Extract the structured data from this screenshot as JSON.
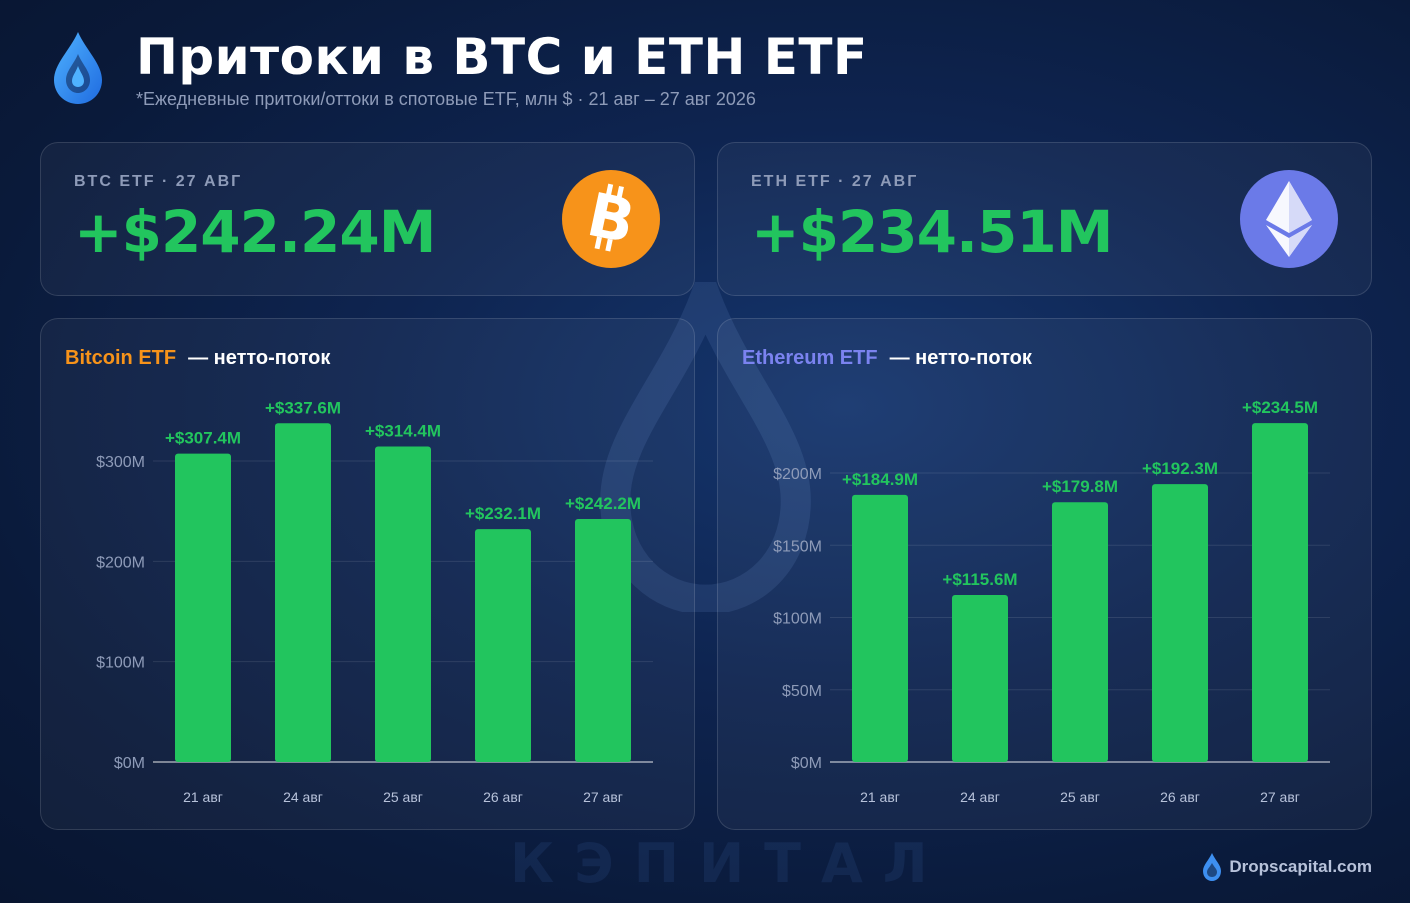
{
  "header": {
    "logo_icon": "water-drop-icon",
    "title": "Притоки в BTC и ETH ETF",
    "subtitle": "*Ежедневные притоки/оттоки в спотовые ETF, млн $ · 21 авг – 27 авг 2026"
  },
  "kpis": [
    {
      "label": "BTC ETF · 27 АВГ",
      "value": "+$242.24M",
      "icon": "bitcoin-icon",
      "icon_color": "#f7931a"
    },
    {
      "label": "ETH ETF · 27 АВГ",
      "value": "+$234.51M",
      "icon": "ethereum-icon",
      "icon_color": "#6b7ae8"
    }
  ],
  "chart_titles": [
    {
      "accent": "Bitcoin ETF",
      "rest": "— нетто-поток"
    },
    {
      "accent": "Ethereum ETF",
      "rest": "— нетто-поток"
    }
  ],
  "colors": {
    "bar": "#22c55e",
    "value_text": "#22c55e",
    "btc": "#f7931a",
    "eth": "#7b83f0"
  },
  "chart_data": [
    {
      "type": "bar",
      "title": "Bitcoin ETF — нетто-поток",
      "categories": [
        "21 авг",
        "24 авг",
        "25 авг",
        "26 авг",
        "27 авг"
      ],
      "values": [
        307.4,
        337.6,
        314.4,
        232.1,
        242.2
      ],
      "data_labels": [
        "+$307.4M",
        "+$337.6M",
        "+$314.4M",
        "+$232.1M",
        "+$242.2M"
      ],
      "yticks": [
        0,
        100,
        200,
        300
      ],
      "ytick_labels": [
        "$0M",
        "$100M",
        "$200M",
        "$300M"
      ],
      "ylim": [
        0,
        300
      ],
      "xlabel": "",
      "ylabel": "",
      "grid": true,
      "legend": "none"
    },
    {
      "type": "bar",
      "title": "Ethereum ETF — нетто-поток",
      "categories": [
        "21 авг",
        "24 авг",
        "25 авг",
        "26 авг",
        "27 авг"
      ],
      "values": [
        184.9,
        115.6,
        179.8,
        192.3,
        234.5
      ],
      "data_labels": [
        "+$184.9M",
        "+$115.6M",
        "+$179.8M",
        "+$192.3M",
        "+$234.5M"
      ],
      "yticks": [
        0,
        50,
        100,
        150,
        200
      ],
      "ytick_labels": [
        "$0M",
        "$50M",
        "$100M",
        "$150M",
        "$200M"
      ],
      "ylim": [
        0,
        200
      ],
      "xlabel": "",
      "ylabel": "",
      "grid": true,
      "legend": "none"
    }
  ],
  "watermark": {
    "text": "КЭПИТАЛ",
    "icon": "water-drop-icon"
  },
  "footer": {
    "icon": "water-drop-icon",
    "text": "Dropscapital.com"
  }
}
